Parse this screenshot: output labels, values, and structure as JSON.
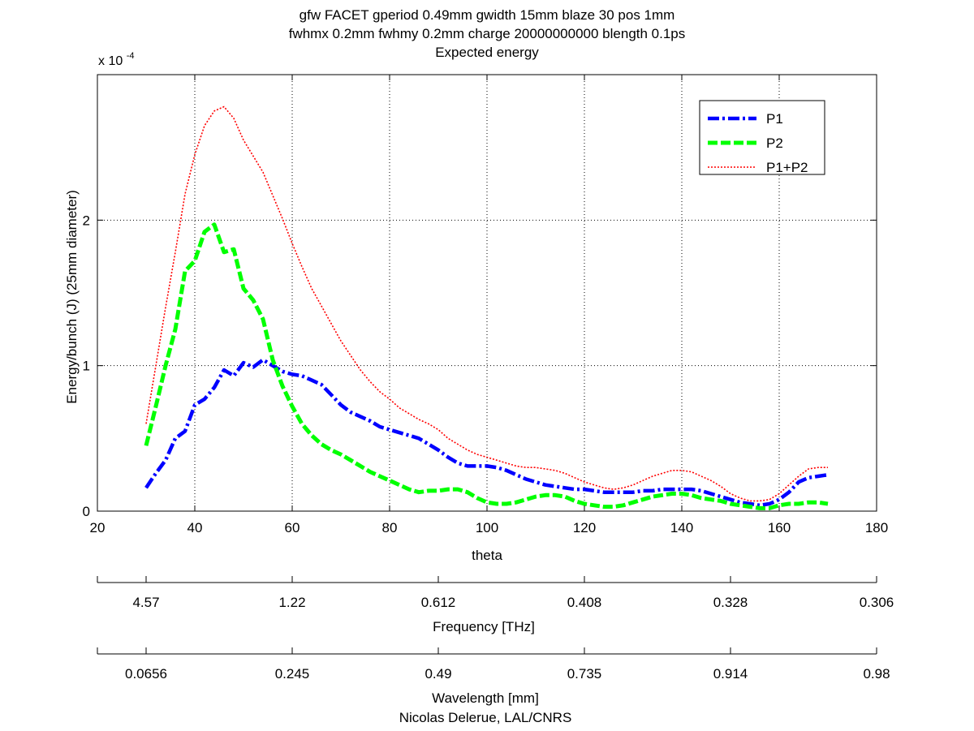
{
  "chart_data": {
    "type": "line",
    "title_lines": [
      "gfw FACET gperiod 0.49mm gwidth 15mm blaze 30 pos 1mm",
      "fwhmx 0.2mm fwhmy 0.2mm charge 20000000000 blength 0.1ps",
      "Expected energy"
    ],
    "xlabel": "theta",
    "ylabel": "Energy/bunch (J) (25mm diameter)",
    "y_multiplier": "x 10",
    "y_multiplier_exp": "-4",
    "xlim": [
      20,
      180
    ],
    "ylim": [
      0,
      0.0003
    ],
    "x_ticks": [
      20,
      40,
      60,
      80,
      100,
      120,
      140,
      160,
      180
    ],
    "y_ticks": [
      0,
      0.0001,
      0.0002
    ],
    "x_tick_labels": [
      "20",
      "40",
      "60",
      "80",
      "100",
      "120",
      "140",
      "160",
      "180"
    ],
    "y_tick_labels": [
      "0",
      "1",
      "2"
    ],
    "grid": true,
    "legend_position": "top-right",
    "series": [
      {
        "name": "P1",
        "color": "#0000ff",
        "style": "dash-dot",
        "x": [
          30,
          32,
          34,
          36,
          38,
          40,
          42,
          44,
          46,
          48,
          50,
          52,
          54,
          56,
          58,
          60,
          62,
          64,
          66,
          68,
          70,
          72,
          74,
          76,
          78,
          80,
          82,
          84,
          86,
          88,
          90,
          92,
          94,
          96,
          98,
          100,
          102,
          104,
          106,
          108,
          110,
          112,
          114,
          116,
          118,
          120,
          122,
          124,
          126,
          128,
          130,
          132,
          134,
          136,
          138,
          140,
          142,
          144,
          146,
          148,
          150,
          152,
          154,
          156,
          158,
          160,
          162,
          164,
          166,
          168,
          170
        ],
        "y": [
          1.6e-05,
          2.6e-05,
          3.5e-05,
          5e-05,
          5.5e-05,
          7.3e-05,
          7.7e-05,
          8.5e-05,
          9.7e-05,
          9.3e-05,
          0.000102,
          9.9e-05,
          0.000104,
          0.0001,
          9.6e-05,
          9.4e-05,
          9.3e-05,
          9e-05,
          8.7e-05,
          8e-05,
          7.3e-05,
          6.8e-05,
          6.5e-05,
          6.2e-05,
          5.8e-05,
          5.6e-05,
          5.4e-05,
          5.2e-05,
          5e-05,
          4.6e-05,
          4.2e-05,
          3.7e-05,
          3.3e-05,
          3.1e-05,
          3.1e-05,
          3.1e-05,
          3e-05,
          2.8e-05,
          2.5e-05,
          2.2e-05,
          2e-05,
          1.8e-05,
          1.7e-05,
          1.6e-05,
          1.5e-05,
          1.5e-05,
          1.4e-05,
          1.3e-05,
          1.3e-05,
          1.3e-05,
          1.3e-05,
          1.4e-05,
          1.4e-05,
          1.5e-05,
          1.5e-05,
          1.5e-05,
          1.5e-05,
          1.4e-05,
          1.2e-05,
          1e-05,
          8e-06,
          6e-06,
          5e-06,
          4e-06,
          5e-06,
          8e-06,
          1.3e-05,
          2e-05,
          2.3e-05,
          2.4e-05,
          2.5e-05
        ]
      },
      {
        "name": "P2",
        "color": "#00ff00",
        "style": "dashed",
        "x": [
          30,
          32,
          34,
          36,
          38,
          40,
          42,
          44,
          46,
          48,
          50,
          52,
          54,
          56,
          58,
          60,
          62,
          64,
          66,
          68,
          70,
          72,
          74,
          76,
          78,
          80,
          82,
          84,
          86,
          88,
          90,
          92,
          94,
          96,
          98,
          100,
          102,
          104,
          106,
          108,
          110,
          112,
          114,
          116,
          118,
          120,
          122,
          124,
          126,
          128,
          130,
          132,
          134,
          136,
          138,
          140,
          142,
          144,
          146,
          148,
          150,
          152,
          154,
          156,
          158,
          160,
          162,
          164,
          166,
          168,
          170
        ],
        "y": [
          4.5e-05,
          7.2e-05,
          0.0001,
          0.000125,
          0.000165,
          0.000172,
          0.000192,
          0.000197,
          0.000178,
          0.00018,
          0.000153,
          0.000145,
          0.000132,
          0.000104,
          8.6e-05,
          7.2e-05,
          6e-05,
          5.2e-05,
          4.6e-05,
          4.2e-05,
          3.9e-05,
          3.5e-05,
          3.1e-05,
          2.7e-05,
          2.4e-05,
          2.1e-05,
          1.8e-05,
          1.5e-05,
          1.3e-05,
          1.4e-05,
          1.4e-05,
          1.5e-05,
          1.5e-05,
          1.3e-05,
          9e-06,
          6e-06,
          5e-06,
          5e-06,
          6e-06,
          8e-06,
          1e-05,
          1.1e-05,
          1.1e-05,
          1e-05,
          7e-06,
          5e-06,
          4e-06,
          3e-06,
          3e-06,
          4e-06,
          6e-06,
          8e-06,
          1e-05,
          1.1e-05,
          1.2e-05,
          1.2e-05,
          1.1e-05,
          9e-06,
          8e-06,
          7e-06,
          5e-06,
          4e-06,
          3e-06,
          2e-06,
          2e-06,
          4e-06,
          5e-06,
          5e-06,
          6e-06,
          6e-06,
          5e-06
        ]
      },
      {
        "name": "P1+P2",
        "color": "#ff0000",
        "style": "dotted",
        "x": [
          30,
          32,
          34,
          36,
          38,
          40,
          42,
          44,
          46,
          48,
          50,
          52,
          54,
          56,
          58,
          60,
          62,
          64,
          66,
          68,
          70,
          72,
          74,
          76,
          78,
          80,
          82,
          84,
          86,
          88,
          90,
          92,
          94,
          96,
          98,
          100,
          102,
          104,
          106,
          108,
          110,
          112,
          114,
          116,
          118,
          120,
          122,
          124,
          126,
          128,
          130,
          132,
          134,
          136,
          138,
          140,
          142,
          144,
          146,
          148,
          150,
          152,
          154,
          156,
          158,
          160,
          162,
          164,
          166,
          168,
          170
        ],
        "y": [
          6e-05,
          0.0001,
          0.00014,
          0.000178,
          0.000218,
          0.000245,
          0.000265,
          0.000275,
          0.000278,
          0.00027,
          0.000255,
          0.000244,
          0.000233,
          0.000217,
          0.000201,
          0.000184,
          0.000168,
          0.000153,
          0.000141,
          0.000129,
          0.000117,
          0.000107,
          9.7e-05,
          8.9e-05,
          8.2e-05,
          7.7e-05,
          7.1e-05,
          6.7e-05,
          6.3e-05,
          6e-05,
          5.6e-05,
          5e-05,
          4.6e-05,
          4.2e-05,
          3.9e-05,
          3.7e-05,
          3.5e-05,
          3.3e-05,
          3.1e-05,
          3e-05,
          3e-05,
          2.9e-05,
          2.8e-05,
          2.6e-05,
          2.3e-05,
          2e-05,
          1.8e-05,
          1.6e-05,
          1.5e-05,
          1.6e-05,
          1.8e-05,
          2.1e-05,
          2.4e-05,
          2.6e-05,
          2.8e-05,
          2.8e-05,
          2.7e-05,
          2.4e-05,
          2.1e-05,
          1.7e-05,
          1.2e-05,
          9e-06,
          7e-06,
          7e-06,
          8e-06,
          1.2e-05,
          1.8e-05,
          2.4e-05,
          2.9e-05,
          3e-05,
          3e-05
        ]
      }
    ],
    "secondary_axes": [
      {
        "label": "Frequency [THz]",
        "ticks": [
          {
            "theta": 20,
            "label": ""
          },
          {
            "theta": 30,
            "label": "4.57"
          },
          {
            "theta": 60,
            "label": "1.22"
          },
          {
            "theta": 90,
            "label": "0.612"
          },
          {
            "theta": 120,
            "label": "0.408"
          },
          {
            "theta": 150,
            "label": "0.328"
          },
          {
            "theta": 180,
            "label": "0.306"
          }
        ]
      },
      {
        "label": "Wavelength [mm]",
        "ticks": [
          {
            "theta": 20,
            "label": ""
          },
          {
            "theta": 30,
            "label": "0.0656"
          },
          {
            "theta": 60,
            "label": "0.245"
          },
          {
            "theta": 90,
            "label": "0.49"
          },
          {
            "theta": 120,
            "label": "0.735"
          },
          {
            "theta": 150,
            "label": "0.914"
          },
          {
            "theta": 180,
            "label": "0.98"
          }
        ]
      }
    ],
    "credit": "Nicolas Delerue, LAL/CNRS"
  }
}
